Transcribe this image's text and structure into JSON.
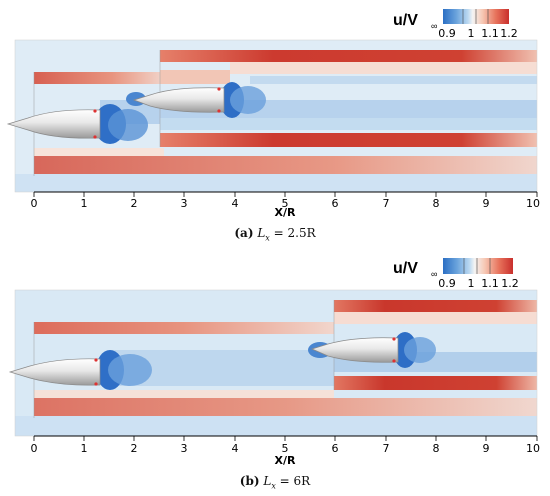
{
  "figures": [
    {
      "legend": {
        "title_main": "u/V",
        "title_sub": "∞",
        "ticks": [
          "0.9",
          "1",
          "1.1",
          "1.2"
        ],
        "colormap": [
          "#2b6fc4",
          "#6aa3dc",
          "#bcd9f1",
          "#f4f4f4",
          "#f6c7b3",
          "#e7735c",
          "#c92f2c"
        ]
      },
      "axis": {
        "xlabel": "X/R",
        "ticks": [
          "0",
          "1",
          "2",
          "3",
          "4",
          "5",
          "6",
          "7",
          "8",
          "9",
          "10"
        ]
      },
      "caption": {
        "tag": "(a)",
        "eq_lhs": "L",
        "eq_sub": "x",
        "eq_rhs": "= 2.5R"
      }
    },
    {
      "legend": {
        "title_main": "u/V",
        "title_sub": "∞",
        "ticks": [
          "0.9",
          "1",
          "1.1",
          "1.2"
        ],
        "colormap": [
          "#2b6fc4",
          "#6aa3dc",
          "#bcd9f1",
          "#f4f4f4",
          "#f6c7b3",
          "#e7735c",
          "#c92f2c"
        ]
      },
      "axis": {
        "xlabel": "X/R",
        "ticks": [
          "0",
          "1",
          "2",
          "3",
          "4",
          "5",
          "6",
          "7",
          "8",
          "9",
          "10"
        ]
      },
      "caption": {
        "tag": "(b)",
        "eq_lhs": "L",
        "eq_sub": "x",
        "eq_rhs": "= 6R"
      }
    }
  ]
}
